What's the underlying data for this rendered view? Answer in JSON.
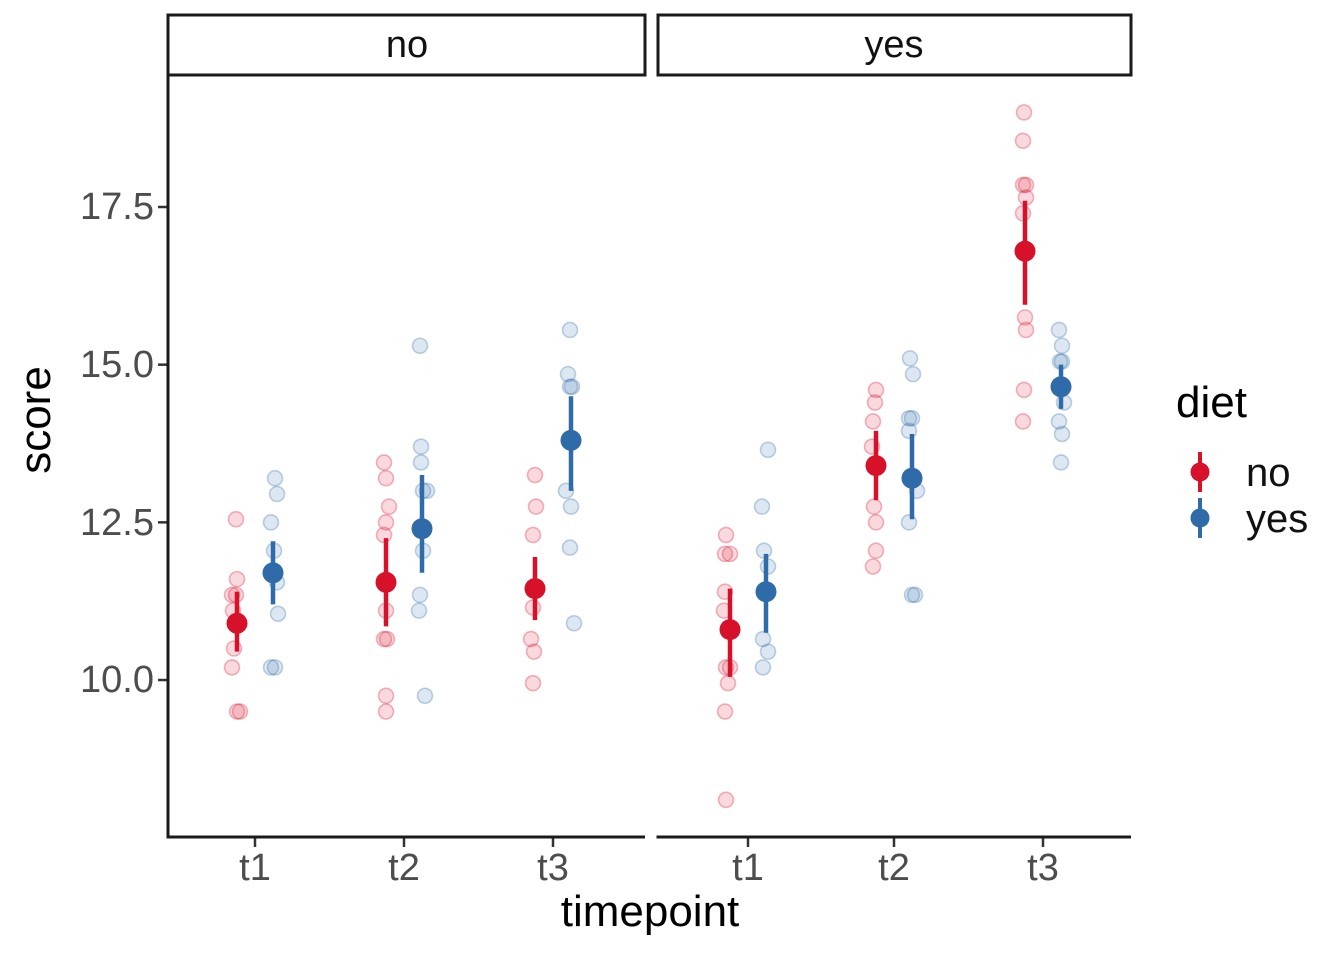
{
  "colors": {
    "diet_no": "#D8112B",
    "diet_yes": "#2E6BA8",
    "axis_line": "#1a1a1a",
    "tick_text": "#4d4d4d",
    "background": "#ffffff"
  },
  "facet_labels": {
    "left": "no",
    "right": "yes"
  },
  "axes": {
    "y": {
      "title": "score",
      "tick_labels": [
        "17.5",
        "15.0",
        "12.5",
        "10.0"
      ]
    },
    "x": {
      "title": "timepoint",
      "tick_labels": [
        "t1",
        "t2",
        "t3"
      ]
    }
  },
  "legend": {
    "title": "diet",
    "items": [
      {
        "label": "no"
      },
      {
        "label": "yes"
      }
    ]
  },
  "chart_data": {
    "type": "scatter",
    "subtype": "jittered raw points with mean and CI pointrange, dodged by diet, faceted",
    "facet_variable_values": [
      "no",
      "yes"
    ],
    "x_categories": [
      "t1",
      "t2",
      "t3"
    ],
    "xlabel": "timepoint",
    "ylabel": "score",
    "y_ticks": [
      17.5,
      15.0,
      12.5,
      10.0
    ],
    "ylim": [
      8.0,
      19.3
    ],
    "legend": {
      "title": "diet",
      "levels": [
        "no",
        "yes"
      ]
    },
    "point_format": "each point = [score_value, x_jitter_px]",
    "facets": [
      {
        "facet": "no",
        "groups": [
          {
            "x": "t1",
            "diet": "no",
            "mean": 10.9,
            "ci_low": 10.45,
            "ci_high": 11.4,
            "points": [
              [
                12.55,
                -1
              ],
              [
                11.6,
                0
              ],
              [
                11.35,
                -5
              ],
              [
                11.35,
                -1
              ],
              [
                11.1,
                -4
              ],
              [
                10.5,
                -3
              ],
              [
                10.2,
                -5
              ],
              [
                9.5,
                0
              ],
              [
                9.5,
                3
              ]
            ]
          },
          {
            "x": "t1",
            "diet": "yes",
            "mean": 11.7,
            "ci_low": 11.2,
            "ci_high": 12.2,
            "points": [
              [
                13.2,
                2
              ],
              [
                12.95,
                4
              ],
              [
                12.5,
                -2
              ],
              [
                12.05,
                1
              ],
              [
                11.55,
                4
              ],
              [
                11.05,
                5
              ],
              [
                10.2,
                -2
              ],
              [
                10.2,
                2
              ]
            ]
          },
          {
            "x": "t2",
            "diet": "no",
            "mean": 11.55,
            "ci_low": 10.85,
            "ci_high": 12.25,
            "points": [
              [
                13.45,
                -2
              ],
              [
                13.2,
                0
              ],
              [
                12.75,
                3
              ],
              [
                12.5,
                0
              ],
              [
                12.3,
                -2
              ],
              [
                11.1,
                0
              ],
              [
                10.65,
                -2
              ],
              [
                10.65,
                1
              ],
              [
                9.75,
                0
              ],
              [
                9.5,
                0
              ]
            ]
          },
          {
            "x": "t2",
            "diet": "yes",
            "mean": 12.4,
            "ci_low": 11.7,
            "ci_high": 13.25,
            "points": [
              [
                15.3,
                -2
              ],
              [
                13.7,
                -1
              ],
              [
                13.45,
                -1
              ],
              [
                13.0,
                1
              ],
              [
                13.0,
                5
              ],
              [
                12.05,
                1
              ],
              [
                11.35,
                -2
              ],
              [
                11.1,
                -3
              ],
              [
                9.75,
                3
              ]
            ]
          },
          {
            "x": "t3",
            "diet": "no",
            "mean": 11.45,
            "ci_low": 10.95,
            "ci_high": 11.95,
            "points": [
              [
                13.25,
                0
              ],
              [
                12.75,
                1
              ],
              [
                12.3,
                -2
              ],
              [
                11.15,
                -2
              ],
              [
                10.65,
                -4
              ],
              [
                10.45,
                -1
              ],
              [
                9.95,
                -2
              ]
            ]
          },
          {
            "x": "t3",
            "diet": "yes",
            "mean": 13.8,
            "ci_low": 13.0,
            "ci_high": 14.5,
            "points": [
              [
                15.55,
                -1
              ],
              [
                14.85,
                -3
              ],
              [
                14.65,
                -1
              ],
              [
                14.65,
                1
              ],
              [
                13.0,
                -5
              ],
              [
                12.75,
                0
              ],
              [
                12.1,
                -1
              ],
              [
                10.9,
                3
              ]
            ]
          }
        ]
      },
      {
        "facet": "yes",
        "groups": [
          {
            "x": "t1",
            "diet": "no",
            "mean": 10.8,
            "ci_low": 10.05,
            "ci_high": 11.45,
            "points": [
              [
                12.3,
                -4
              ],
              [
                12.0,
                -5
              ],
              [
                12.0,
                0
              ],
              [
                11.4,
                -5
              ],
              [
                11.1,
                -6
              ],
              [
                10.2,
                -4
              ],
              [
                10.2,
                0
              ],
              [
                9.95,
                -2
              ],
              [
                9.5,
                -5
              ],
              [
                8.1,
                -4
              ]
            ]
          },
          {
            "x": "t1",
            "diet": "yes",
            "mean": 11.4,
            "ci_low": 10.75,
            "ci_high": 12.0,
            "points": [
              [
                13.65,
                2
              ],
              [
                12.75,
                -4
              ],
              [
                12.05,
                -2
              ],
              [
                11.8,
                2
              ],
              [
                10.65,
                -3
              ],
              [
                10.45,
                2
              ],
              [
                10.2,
                -3
              ]
            ]
          },
          {
            "x": "t2",
            "diet": "no",
            "mean": 13.4,
            "ci_low": 12.85,
            "ci_high": 13.95,
            "points": [
              [
                14.6,
                0
              ],
              [
                14.4,
                -1
              ],
              [
                14.1,
                -3
              ],
              [
                13.7,
                -4
              ],
              [
                12.75,
                -2
              ],
              [
                12.5,
                0
              ],
              [
                12.05,
                0
              ],
              [
                11.8,
                -3
              ]
            ]
          },
          {
            "x": "t2",
            "diet": "yes",
            "mean": 13.2,
            "ci_low": 12.55,
            "ci_high": 13.9,
            "points": [
              [
                15.1,
                -2
              ],
              [
                14.85,
                1
              ],
              [
                14.15,
                -3
              ],
              [
                14.15,
                0
              ],
              [
                13.95,
                -3
              ],
              [
                13.0,
                5
              ],
              [
                12.5,
                -3
              ],
              [
                11.35,
                0
              ],
              [
                11.35,
                3
              ]
            ]
          },
          {
            "x": "t3",
            "diet": "no",
            "mean": 16.8,
            "ci_low": 15.95,
            "ci_high": 17.6,
            "points": [
              [
                19.0,
                -1
              ],
              [
                18.55,
                -2
              ],
              [
                17.85,
                -2
              ],
              [
                17.85,
                1
              ],
              [
                17.65,
                1
              ],
              [
                17.4,
                -2
              ],
              [
                15.75,
                0
              ],
              [
                15.55,
                1
              ],
              [
                14.6,
                -1
              ],
              [
                14.1,
                -2
              ]
            ]
          },
          {
            "x": "t3",
            "diet": "yes",
            "mean": 14.65,
            "ci_low": 14.3,
            "ci_high": 15.0,
            "points": [
              [
                15.55,
                -2
              ],
              [
                15.3,
                1
              ],
              [
                15.05,
                -1
              ],
              [
                15.05,
                1
              ],
              [
                14.4,
                3
              ],
              [
                14.1,
                -2
              ],
              [
                13.9,
                1
              ],
              [
                13.45,
                0
              ]
            ]
          }
        ]
      }
    ]
  }
}
